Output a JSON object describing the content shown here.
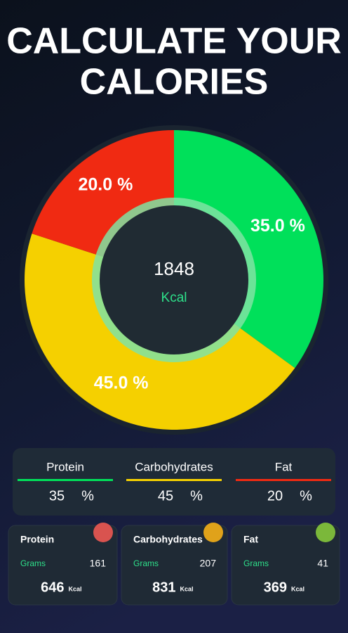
{
  "title": [
    "CALCULATE YOUR",
    "CALORIES"
  ],
  "chart_data": {
    "type": "pie",
    "values": [
      35,
      45,
      20
    ],
    "value_labels": [
      "35.0 %",
      "45.0 %",
      "20.0 %"
    ],
    "colors": [
      "#00e05a",
      "#f5d000",
      "#f02a12"
    ],
    "center_value": 1848,
    "center_unit": "Kcal"
  },
  "percent_table": {
    "unit": "%",
    "columns": [
      {
        "name": "Protein",
        "value": 35,
        "color": "#00e05a"
      },
      {
        "name": "Carbohydrates",
        "value": 45,
        "color": "#f5d000"
      },
      {
        "name": "Fat",
        "value": 20,
        "color": "#f02a12"
      }
    ]
  },
  "cards": [
    {
      "name": "Protein",
      "grams_label": "Grams",
      "grams": 161,
      "kcal": 646,
      "kcal_unit": "Kcal"
    },
    {
      "name": "Carbohydrates",
      "grams_label": "Grams",
      "grams": 207,
      "kcal": 831,
      "kcal_unit": "Kcal"
    },
    {
      "name": "Fat",
      "grams_label": "Grams",
      "grams": 41,
      "kcal": 369,
      "kcal_unit": "Kcal"
    }
  ]
}
